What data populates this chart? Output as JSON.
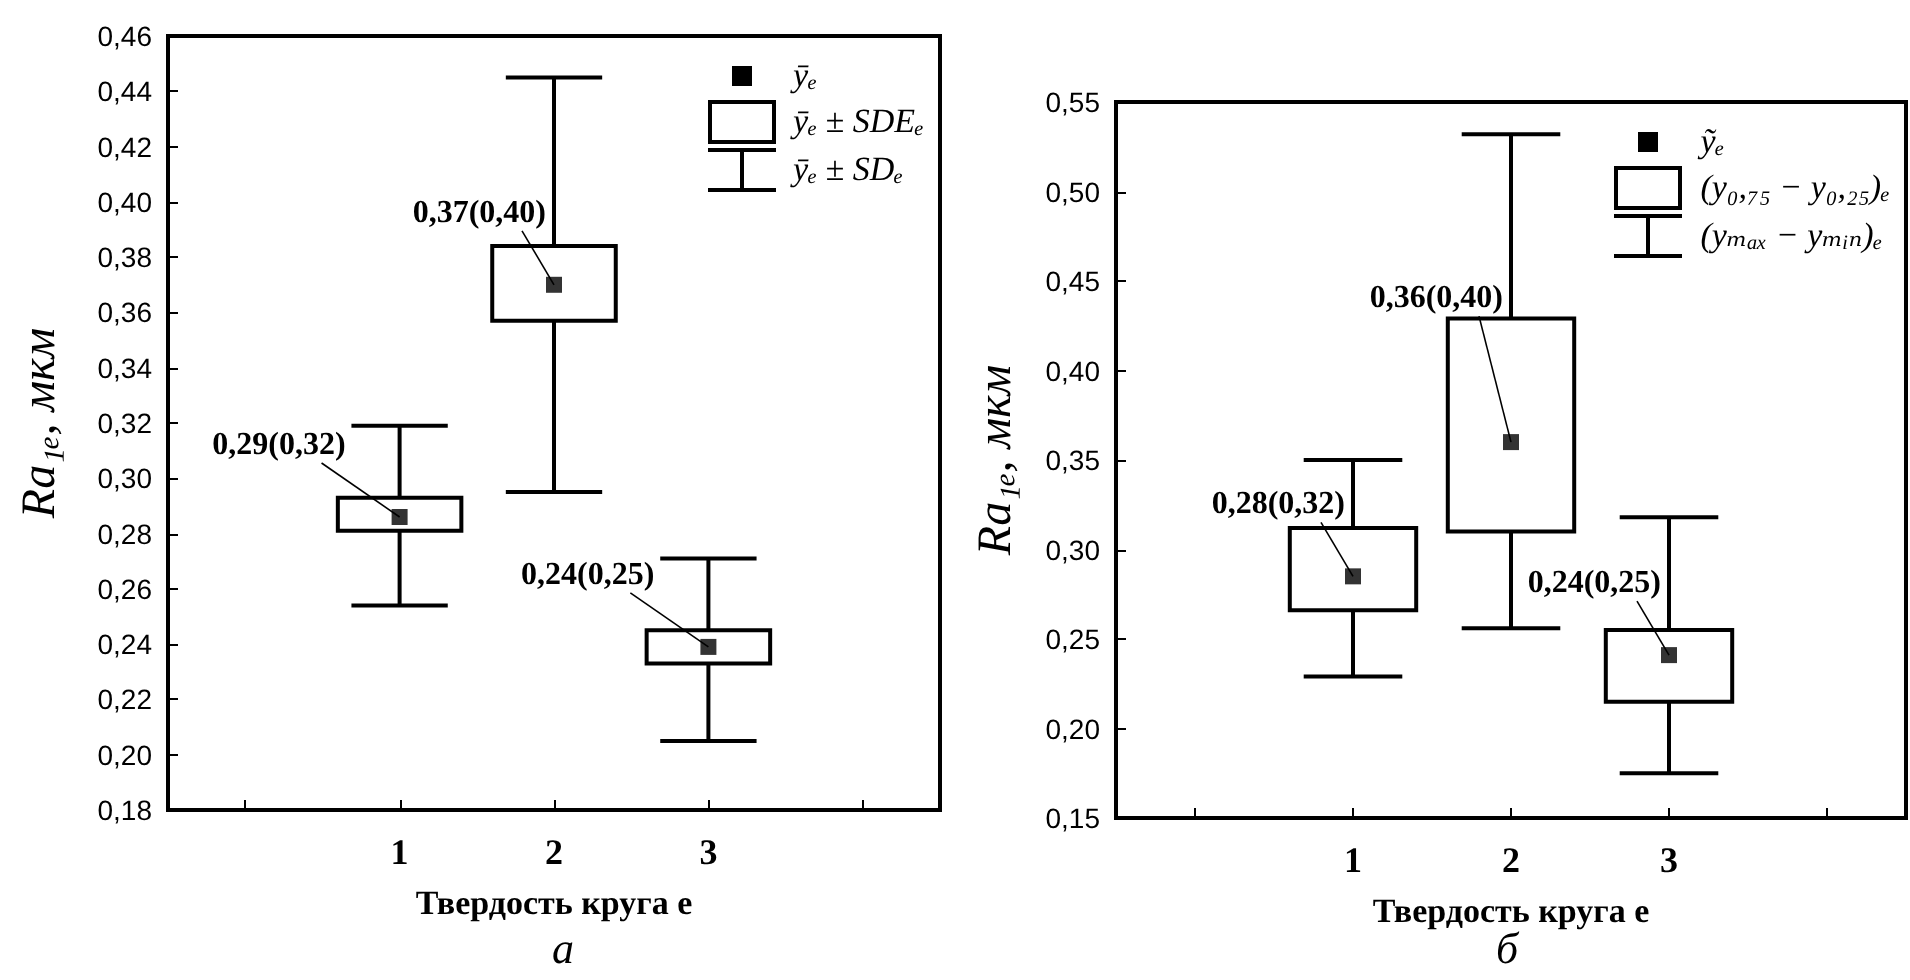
{
  "chart_data": [
    {
      "type": "box",
      "title": "а",
      "xlabel": "Твердость круга e",
      "ylabel": "Ra₁ₑ, мкм",
      "categories": [
        null,
        "1",
        "2",
        "3",
        null
      ],
      "boxes": [
        null,
        {
          "low": 0.254,
          "q1": 0.281,
          "median": 0.286,
          "q3": 0.293,
          "high": 0.319
        },
        {
          "low": 0.295,
          "q1": 0.357,
          "median": 0.37,
          "q3": 0.384,
          "high": 0.445
        },
        {
          "low": 0.205,
          "q1": 0.233,
          "median": 0.239,
          "q3": 0.245,
          "high": 0.271
        },
        null
      ],
      "ylim": [
        0.18,
        0.46
      ],
      "yticks": [
        {
          "value": 0.18,
          "label": "0,18"
        },
        {
          "value": 0.2,
          "label": "0,20"
        },
        {
          "value": 0.22,
          "label": "0,22"
        },
        {
          "value": 0.24,
          "label": "0,24"
        },
        {
          "value": 0.26,
          "label": "0,26"
        },
        {
          "value": 0.28,
          "label": "0,28"
        },
        {
          "value": 0.3,
          "label": "0,30"
        },
        {
          "value": 0.32,
          "label": "0,32"
        },
        {
          "value": 0.34,
          "label": "0,34"
        },
        {
          "value": 0.36,
          "label": "0,36"
        },
        {
          "value": 0.38,
          "label": "0,38"
        },
        {
          "value": 0.4,
          "label": "0,40"
        },
        {
          "value": 0.42,
          "label": "0,42"
        },
        {
          "value": 0.44,
          "label": "0,44"
        },
        {
          "value": 0.46,
          "label": "0,46"
        }
      ],
      "annotations": [
        "ȳₑ",
        "ȳₑ ± SDEₑ",
        "ȳₑ ± SDₑ",
        {
          "text": "0,29(0,32)",
          "x": "1",
          "y": 0.286
        },
        {
          "text": "0,37(0,40)",
          "x": "2",
          "y": 0.37
        },
        {
          "text": "0,24(0,25)",
          "x": "3",
          "y": 0.239
        }
      ],
      "grid": false
    },
    {
      "type": "box",
      "title": "б",
      "xlabel": "Твердость круга e",
      "ylabel": "Ra₁ₑ, мкм",
      "categories": [
        null,
        "1",
        "2",
        "3",
        null
      ],
      "boxes": [
        null,
        {
          "low": 0.229,
          "q1": 0.266,
          "median": 0.285,
          "q3": 0.312,
          "high": 0.35
        },
        {
          "low": 0.256,
          "q1": 0.31,
          "median": 0.36,
          "q3": 0.429,
          "high": 0.532
        },
        {
          "low": 0.175,
          "q1": 0.215,
          "median": 0.241,
          "q3": 0.255,
          "high": 0.318
        },
        null
      ],
      "ylim": [
        0.15,
        0.55
      ],
      "yticks": [
        {
          "value": 0.15,
          "label": "0,15"
        },
        {
          "value": 0.2,
          "label": "0,20"
        },
        {
          "value": 0.25,
          "label": "0,25"
        },
        {
          "value": 0.3,
          "label": "0,30"
        },
        {
          "value": 0.35,
          "label": "0,35"
        },
        {
          "value": 0.4,
          "label": "0,40"
        },
        {
          "value": 0.45,
          "label": "0,45"
        },
        {
          "value": 0.5,
          "label": "0,50"
        },
        {
          "value": 0.55,
          "label": "0,55"
        }
      ],
      "annotations": [
        "ỹₑ",
        "(y₀,₇₅ − y₀,₂₅)ₑ",
        "(yₘₐₓ − yₘᵢₙ)ₑ",
        {
          "text": "0,28(0,32)",
          "x": "1",
          "y": 0.285
        },
        {
          "text": "0,36(0,40)",
          "x": "2",
          "y": 0.36
        },
        {
          "text": "0,24(0,25)",
          "x": "3",
          "y": 0.241
        }
      ],
      "grid": false
    }
  ]
}
